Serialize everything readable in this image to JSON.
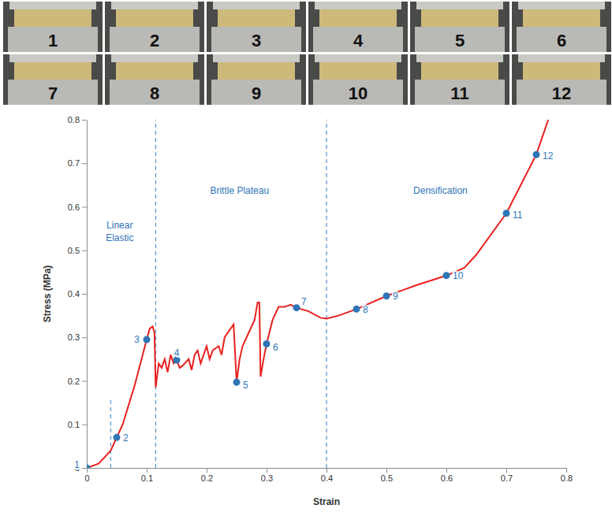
{
  "panels": {
    "labels": [
      "1",
      "2",
      "3",
      "4",
      "5",
      "6",
      "7",
      "8",
      "9",
      "10",
      "11",
      "12"
    ]
  },
  "chart_data": {
    "type": "line",
    "x_label": "Strain",
    "y_label": "Stress (MPa)",
    "xlim": [
      0,
      0.8
    ],
    "ylim": [
      0,
      0.8
    ],
    "xticks": [
      0,
      0.1,
      0.2,
      0.3,
      0.4,
      0.5,
      0.6,
      0.7,
      0.8
    ],
    "yticks": [
      0,
      0.1,
      0.2,
      0.3,
      0.4,
      0.5,
      0.6,
      0.7,
      0.8
    ],
    "grid": false,
    "annotations": [
      {
        "text": "Linear Elastic",
        "x": 0.055,
        "y": 0.55
      },
      {
        "text": "Brittle Plateau",
        "x": 0.255,
        "y": 0.63
      },
      {
        "text": "Densification",
        "x": 0.59,
        "y": 0.63
      }
    ],
    "vlines": [
      {
        "x": 0.04,
        "y": [
          0,
          0.16
        ]
      },
      {
        "x": 0.115,
        "y": [
          0,
          0.8
        ]
      },
      {
        "x": 0.4,
        "y": [
          0,
          0.8
        ]
      }
    ],
    "series": [
      {
        "type": "line",
        "color": "#e8201e",
        "line_style": "solid",
        "x": [
          0,
          0.02,
          0.04,
          0.05,
          0.06,
          0.08,
          0.1,
          0.105,
          0.11,
          0.113,
          0.115,
          0.12,
          0.125,
          0.13,
          0.135,
          0.14,
          0.145,
          0.15,
          0.155,
          0.16,
          0.17,
          0.175,
          0.18,
          0.185,
          0.19,
          0.2,
          0.205,
          0.21,
          0.22,
          0.225,
          0.23,
          0.24,
          0.245,
          0.25,
          0.255,
          0.26,
          0.27,
          0.28,
          0.285,
          0.288,
          0.29,
          0.295,
          0.3,
          0.31,
          0.32,
          0.33,
          0.34,
          0.35,
          0.37,
          0.39,
          0.4,
          0.42,
          0.45,
          0.5,
          0.55,
          0.6,
          0.63,
          0.65,
          0.7,
          0.75,
          0.77
        ],
        "values": [
          0,
          0.01,
          0.04,
          0.07,
          0.1,
          0.19,
          0.295,
          0.32,
          0.325,
          0.31,
          0.185,
          0.24,
          0.23,
          0.25,
          0.22,
          0.26,
          0.24,
          0.248,
          0.23,
          0.235,
          0.25,
          0.225,
          0.26,
          0.27,
          0.24,
          0.28,
          0.25,
          0.27,
          0.28,
          0.26,
          0.3,
          0.32,
          0.33,
          0.197,
          0.25,
          0.28,
          0.31,
          0.34,
          0.38,
          0.38,
          0.21,
          0.25,
          0.285,
          0.34,
          0.37,
          0.37,
          0.375,
          0.368,
          0.36,
          0.345,
          0.343,
          0.35,
          0.365,
          0.395,
          0.42,
          0.442,
          0.46,
          0.49,
          0.585,
          0.72,
          0.8
        ]
      },
      {
        "type": "scatter",
        "color": "#2e75b6",
        "marker": "circle",
        "x": [
          0,
          0.05,
          0.1,
          0.15,
          0.25,
          0.3,
          0.35,
          0.45,
          0.5,
          0.6,
          0.7,
          0.75
        ],
        "values": [
          0,
          0.07,
          0.295,
          0.248,
          0.197,
          0.285,
          0.368,
          0.365,
          0.395,
          0.442,
          0.585,
          0.72
        ],
        "labels": [
          "1",
          "2",
          "3",
          "4",
          "5",
          "6",
          "7",
          "8",
          "9",
          "10",
          "11",
          "12"
        ]
      }
    ]
  }
}
